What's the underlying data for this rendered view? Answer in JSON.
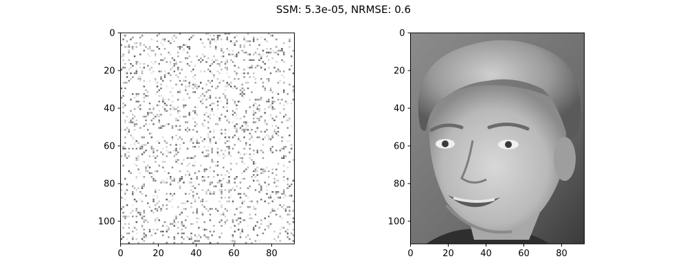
{
  "figure": {
    "suptitle": "SSM: 5.3e-05, NRMSE: 0.6"
  },
  "chart_data": [
    {
      "type": "heatmap",
      "title": "",
      "description": "image panel: sparse noisy grayscale reconstruction",
      "cmap": "gray",
      "image_size": [
        92,
        112
      ],
      "xlim": [
        0,
        92
      ],
      "ylim": [
        112,
        0
      ],
      "x_ticks": [
        0,
        20,
        40,
        60,
        80
      ],
      "y_ticks": [
        0,
        20,
        40,
        60,
        80,
        100
      ],
      "xlabel": "",
      "ylabel": "",
      "grid": false
    },
    {
      "type": "heatmap",
      "title": "",
      "description": "image panel: grayscale face photograph",
      "cmap": "gray",
      "image_size": [
        92,
        112
      ],
      "xlim": [
        0,
        92
      ],
      "ylim": [
        112,
        0
      ],
      "x_ticks": [
        0,
        20,
        40,
        60,
        80
      ],
      "y_ticks": [
        0,
        20,
        40,
        60,
        80,
        100
      ],
      "xlabel": "",
      "ylabel": "",
      "grid": false
    }
  ]
}
